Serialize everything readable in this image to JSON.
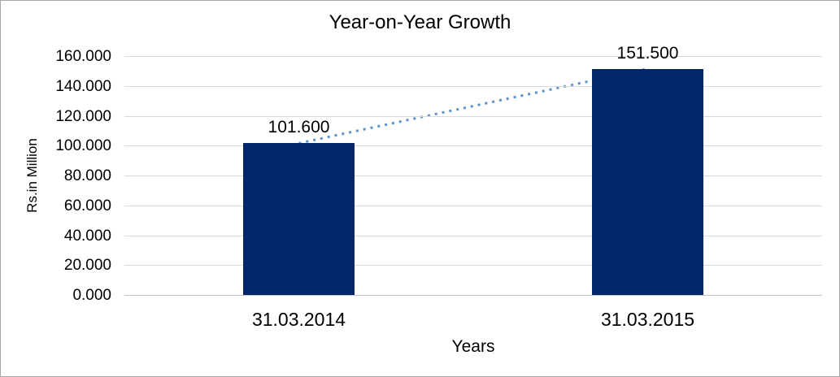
{
  "frame": {
    "background": "#ffffff",
    "border_color": "#a6a6a6"
  },
  "chart_data": {
    "type": "bar",
    "title": "Year-on-Year Growth",
    "xlabel": "Years",
    "ylabel": "Rs.in Million",
    "categories": [
      "31.03.2014",
      "31.03.2015"
    ],
    "values": [
      101.6,
      151.5
    ],
    "data_labels": [
      "101.600",
      "151.500"
    ],
    "ylim": [
      0,
      160
    ],
    "ytick_step": 20,
    "ytick_labels": [
      "0.000",
      "20.000",
      "40.000",
      "60.000",
      "80.000",
      "100.000",
      "120.000",
      "140.000",
      "160.000"
    ],
    "grid": true,
    "legend_position": "none",
    "bar_color": "#032569",
    "gridline_color": "#d9d9d9",
    "axis_line_color": "#c3c3c3",
    "trendline": {
      "style": "dotted",
      "color": "#5b93cf",
      "connects": "bar-tops"
    }
  }
}
